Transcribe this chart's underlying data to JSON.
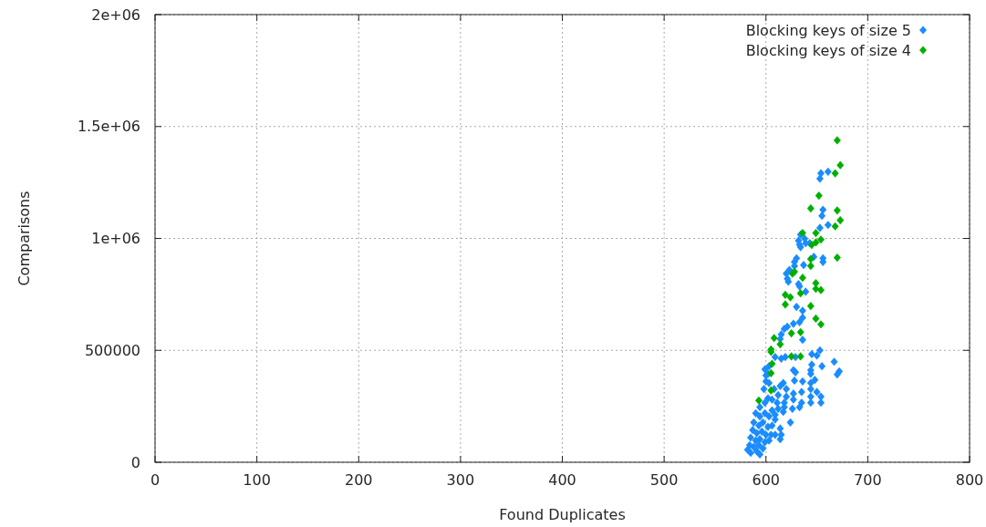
{
  "chart_data": {
    "type": "scatter",
    "xlabel": "Found Duplicates",
    "ylabel": "Comparisons",
    "xlim": [
      0,
      800
    ],
    "ylim": [
      0,
      2000000
    ],
    "xticks": [
      0,
      100,
      200,
      300,
      400,
      500,
      600,
      700,
      800
    ],
    "yticks": [
      0,
      500000,
      {
        "value": 1000000,
        "label": "1e+06"
      },
      {
        "value": 1500000,
        "label": "1.5e+06"
      },
      {
        "value": 2000000,
        "label": "2e+06"
      }
    ],
    "grid": true,
    "legend": "top right",
    "marker": "diamond",
    "series": [
      {
        "name": "Blocking keys of size 5",
        "color": "#1a8cff",
        "x": [
          654,
          661,
          653,
          656,
          655,
          653,
          661,
          634,
          632,
          638,
          633,
          639,
          634,
          643,
          630,
          628,
          637,
          647,
          656,
          656,
          628,
          623,
          620,
          621,
          622,
          632,
          633,
          639,
          630,
          636,
          636,
          633,
          627,
          618,
          621,
          615,
          614,
          636,
          653,
          645,
          650,
          667,
          672,
          670,
          655,
          645,
          644,
          644,
          648,
          644,
          644,
          650,
          654,
          654,
          644,
          644,
          636,
          628,
          617,
          627,
          629,
          629,
          619,
          615,
          609,
          635,
          635,
          627,
          627,
          633,
          626,
          620,
          618,
          624,
          612,
          611,
          612,
          609,
          614,
          614,
          609,
          606,
          603,
          600,
          598,
          602,
          599,
          603,
          600,
          594,
          590,
          594,
          599,
          603,
          588,
          593,
          597,
          602,
          606,
          587,
          591,
          596,
          600,
          605,
          609,
          585,
          590,
          594,
          599,
          603,
          584,
          588,
          593,
          597,
          582,
          585,
          591,
          594,
          615,
          617,
          618,
          620,
          602,
          599,
          606,
          608,
          614
        ],
        "values": [
          1291000,
          1298000,
          1267000,
          1128000,
          1101000,
          1047000,
          1060000,
          1017000,
          990000,
          999000,
          972000,
          979000,
          961000,
          979000,
          911000,
          895000,
          881000,
          918000,
          911000,
          895000,
          877000,
          859000,
          843000,
          820000,
          807000,
          796000,
          786000,
          762000,
          694000,
          677000,
          646000,
          626000,
          619000,
          596000,
          606000,
          571000,
          551000,
          547000,
          500000,
          483000,
          477000,
          449000,
          406000,
          392000,
          429000,
          436000,
          411000,
          395000,
          368000,
          354000,
          327000,
          314000,
          293000,
          266000,
          293000,
          266000,
          361000,
          365000,
          354000,
          411000,
          402000,
          470000,
          470000,
          463000,
          470000,
          314000,
          266000,
          307000,
          280000,
          246000,
          239000,
          293000,
          266000,
          178000,
          300000,
          266000,
          239000,
          212000,
          151000,
          103000,
          191000,
          232000,
          354000,
          361000,
          327000,
          395000,
          415000,
          429000,
          388000,
          246000,
          219000,
          205000,
          219000,
          205000,
          178000,
          164000,
          178000,
          158000,
          164000,
          144000,
          130000,
          137000,
          123000,
          123000,
          123000,
          110000,
          97000,
          103000,
          90000,
          97000,
          76000,
          69000,
          76000,
          62000,
          56000,
          42000,
          49000,
          35000,
          123000,
          225000,
          246000,
          327000,
          286000,
          266000,
          280000,
          327000,
          341000
        ]
      },
      {
        "name": "Blocking keys of size 4",
        "color": "#00b000",
        "x": [
          670,
          673,
          668,
          652,
          644,
          670,
          673,
          668,
          636,
          649,
          654,
          649,
          645,
          670,
          644,
          644,
          626,
          628,
          636,
          649,
          654,
          649,
          634,
          619,
          624,
          619,
          644,
          649,
          654,
          634,
          625,
          608,
          614,
          605,
          605,
          625,
          634,
          606,
          605,
          605,
          593
        ],
        "values": [
          1438000,
          1327000,
          1291000,
          1191000,
          1134000,
          1125000,
          1081000,
          1054000,
          1024000,
          1024000,
          995000,
          982000,
          971000,
          914000,
          908000,
          877000,
          843000,
          851000,
          824000,
          800000,
          769000,
          775000,
          755000,
          748000,
          737000,
          705000,
          698000,
          642000,
          616000,
          581000,
          576000,
          555000,
          527000,
          504000,
          493000,
          473000,
          473000,
          440000,
          398000,
          321000,
          276000
        ]
      }
    ]
  }
}
